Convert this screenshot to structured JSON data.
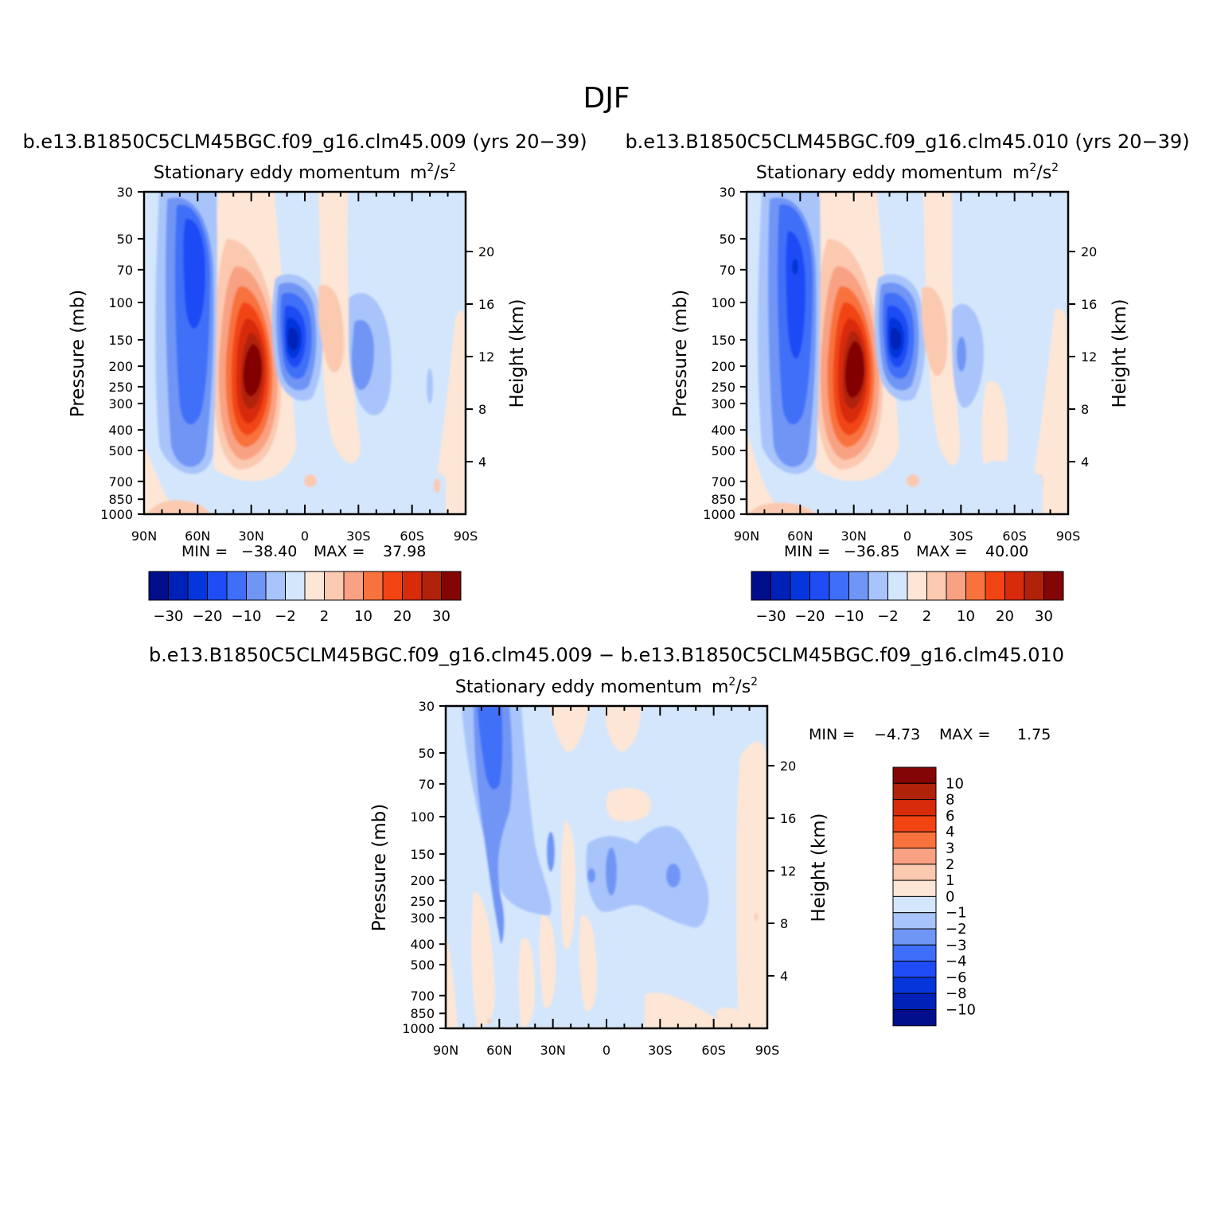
{
  "figure_title": "DJF",
  "colors": {
    "palette": [
      "#000e8c",
      "#0021b7",
      "#0536db",
      "#1f4cf5",
      "#3f6ff8",
      "#6f95f5",
      "#a8c4fa",
      "#d3e6fc",
      "#fde6d6",
      "#fbc9b0",
      "#f9a183",
      "#f8723e",
      "#f24413",
      "#d72b0b",
      "#b1220b",
      "#830505"
    ],
    "background_zero": "#d3e6fc"
  },
  "panels": [
    {
      "title": "b.e13.B1850C5CLM45BGC.f09_g16.clm45.009 (yrs 20−39)",
      "subtitle": "Stationary eddy momentum",
      "units_base": "m",
      "units_sup1": "2",
      "units_mid": "/s",
      "units_sup2": "2",
      "ylabel": "Pressure (mb)",
      "ylabel_right": "Height (km)",
      "xticks": [
        "90N",
        "60N",
        "30N",
        "0",
        "30S",
        "60S",
        "90S"
      ],
      "yticks": [
        "30",
        "50",
        "70",
        "100",
        "150",
        "200",
        "250",
        "300",
        "400",
        "500",
        "700",
        "850",
        "1000"
      ],
      "hticks": [
        "20",
        "16",
        "12",
        "8",
        "4"
      ],
      "min_label": "MIN =",
      "min_value": "−38.40",
      "max_label": "MAX =",
      "max_value": "37.98",
      "colorbar_labels": [
        "−30",
        "−20",
        "−10",
        "−2",
        "2",
        "10",
        "20",
        "30"
      ]
    },
    {
      "title": "b.e13.B1850C5CLM45BGC.f09_g16.clm45.010 (yrs 20−39)",
      "subtitle": "Stationary eddy momentum",
      "units_base": "m",
      "units_sup1": "2",
      "units_mid": "/s",
      "units_sup2": "2",
      "ylabel": "Pressure (mb)",
      "ylabel_right": "Height (km)",
      "xticks": [
        "90N",
        "60N",
        "30N",
        "0",
        "30S",
        "60S",
        "90S"
      ],
      "yticks": [
        "30",
        "50",
        "70",
        "100",
        "150",
        "200",
        "250",
        "300",
        "400",
        "500",
        "700",
        "850",
        "1000"
      ],
      "hticks": [
        "20",
        "16",
        "12",
        "8",
        "4"
      ],
      "min_label": "MIN =",
      "min_value": "−36.85",
      "max_label": "MAX =",
      "max_value": "40.00",
      "colorbar_labels": [
        "−30",
        "−20",
        "−10",
        "−2",
        "2",
        "10",
        "20",
        "30"
      ]
    },
    {
      "title": "b.e13.B1850C5CLM45BGC.f09_g16.clm45.009 − b.e13.B1850C5CLM45BGC.f09_g16.clm45.010",
      "subtitle": "Stationary eddy momentum",
      "units_base": "m",
      "units_sup1": "2",
      "units_mid": "/s",
      "units_sup2": "2",
      "ylabel": "Pressure (mb)",
      "ylabel_right": "Height (km)",
      "xticks": [
        "90N",
        "60N",
        "30N",
        "0",
        "30S",
        "60S",
        "90S"
      ],
      "yticks": [
        "30",
        "50",
        "70",
        "100",
        "150",
        "200",
        "250",
        "300",
        "400",
        "500",
        "700",
        "850",
        "1000"
      ],
      "hticks": [
        "20",
        "16",
        "12",
        "8",
        "4"
      ],
      "min_label": "MIN =",
      "min_value": "−4.73",
      "max_label": "MAX =",
      "max_value": "1.75",
      "colorbar_labels": [
        "10",
        "8",
        "6",
        "4",
        "3",
        "2",
        "1",
        "0",
        "−1",
        "−2",
        "−3",
        "−4",
        "−6",
        "−8",
        "−10"
      ]
    }
  ],
  "chart_data": [
    {
      "type": "heatmap",
      "title": "b.e13.B1850C5CLM45BGC.f09_g16.clm45.009 (yrs 20−39)",
      "variable": "Stationary eddy momentum",
      "units": "m2/s2",
      "x": [
        "90N",
        "60N",
        "30N",
        "0",
        "30S",
        "60S",
        "90S"
      ],
      "xrange": [
        90,
        -90
      ],
      "yrange_mb": [
        1000,
        30
      ],
      "contour_levels": [
        -30,
        -25,
        -20,
        -15,
        -10,
        -5,
        -2,
        0,
        2,
        5,
        10,
        15,
        20,
        25,
        30
      ],
      "min": -38.4,
      "max": 37.98,
      "features": [
        {
          "lat": 62,
          "p_mb": 120,
          "value": -20
        },
        {
          "lat": 31,
          "p_mb": 200,
          "value": 35
        },
        {
          "lat": 8,
          "p_mb": 150,
          "value": -35
        },
        {
          "lat": -10,
          "p_mb": 120,
          "value": 8
        },
        {
          "lat": -30,
          "p_mb": 160,
          "value": -7
        }
      ]
    },
    {
      "type": "heatmap",
      "title": "b.e13.B1850C5CLM45BGC.f09_g16.clm45.010 (yrs 20−39)",
      "variable": "Stationary eddy momentum",
      "units": "m2/s2",
      "x": [
        "90N",
        "60N",
        "30N",
        "0",
        "30S",
        "60S",
        "90S"
      ],
      "xrange": [
        90,
        -90
      ],
      "yrange_mb": [
        1000,
        30
      ],
      "contour_levels": [
        -30,
        -25,
        -20,
        -15,
        -10,
        -5,
        -2,
        0,
        2,
        5,
        10,
        15,
        20,
        25,
        30
      ],
      "min": -36.85,
      "max": 40.0,
      "features": [
        {
          "lat": 62,
          "p_mb": 120,
          "value": -21
        },
        {
          "lat": 31,
          "p_mb": 200,
          "value": 37
        },
        {
          "lat": 8,
          "p_mb": 150,
          "value": -34
        },
        {
          "lat": -10,
          "p_mb": 120,
          "value": 8
        },
        {
          "lat": -30,
          "p_mb": 160,
          "value": -6
        }
      ]
    },
    {
      "type": "heatmap",
      "title": "b.e13.B1850C5CLM45BGC.f09_g16.clm45.009 − b.e13.B1850C5CLM45BGC.f09_g16.clm45.010",
      "variable": "Stationary eddy momentum",
      "units": "m2/s2",
      "x": [
        "90N",
        "60N",
        "30N",
        "0",
        "30S",
        "60S",
        "90S"
      ],
      "xrange": [
        90,
        -90
      ],
      "yrange_mb": [
        1000,
        30
      ],
      "contour_levels": [
        -10,
        -8,
        -6,
        -4,
        -3,
        -2,
        -1,
        0,
        1,
        2,
        3,
        4,
        6,
        8,
        10
      ],
      "min": -4.73,
      "max": 1.75,
      "features": [
        {
          "lat": 67,
          "p_mb": 45,
          "value": -4
        },
        {
          "lat": 62,
          "p_mb": 150,
          "value": -2
        },
        {
          "lat": -5,
          "p_mb": 190,
          "value": -2
        },
        {
          "lat": -35,
          "p_mb": 190,
          "value": -2
        },
        {
          "lat": -15,
          "p_mb": 90,
          "value": 1
        }
      ]
    }
  ]
}
